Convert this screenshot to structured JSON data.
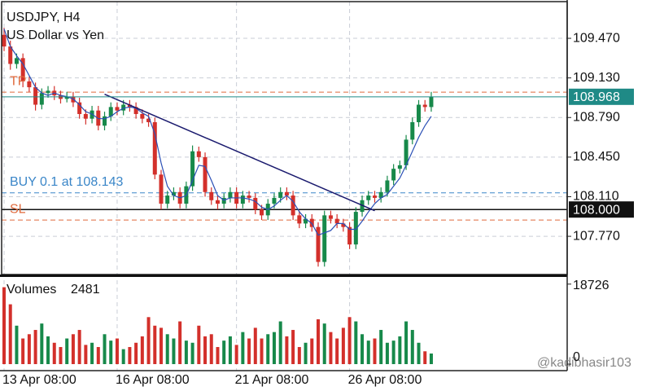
{
  "chart_data": [
    {
      "type": "candlestick",
      "title": "USDJPY, H4",
      "subtitle": "US Dollar vs Yen",
      "categories": [
        "13 Apr 08:00",
        null,
        null,
        null,
        null,
        null,
        null,
        null,
        null,
        null,
        null,
        null,
        null,
        null,
        null,
        null,
        null,
        null,
        "16 Apr 08:00",
        null,
        null,
        null,
        null,
        null,
        null,
        null,
        null,
        null,
        null,
        null,
        null,
        null,
        null,
        null,
        null,
        null,
        null,
        "21 Apr 08:00",
        null,
        null,
        null,
        null,
        null,
        null,
        null,
        null,
        null,
        null,
        null,
        null,
        null,
        null,
        null,
        null,
        null,
        "26 Apr 08:00",
        null,
        null,
        null,
        null,
        null,
        null,
        null,
        null,
        null,
        null,
        null,
        null,
        null
      ],
      "open": [
        109.5,
        109.4,
        109.25,
        109.3,
        109.1,
        109.05,
        108.9,
        109.0,
        109.02,
        108.98,
        108.95,
        108.97,
        108.92,
        108.82,
        108.78,
        108.85,
        108.72,
        108.8,
        108.88,
        108.85,
        108.9,
        108.88,
        108.82,
        108.78,
        108.75,
        108.3,
        108.05,
        108.12,
        108.15,
        108.05,
        108.2,
        108.5,
        108.45,
        108.15,
        108.08,
        108.05,
        108.1,
        108.15,
        108.05,
        108.12,
        108.1,
        108.0,
        107.95,
        108.05,
        108.1,
        108.15,
        108.12,
        107.95,
        107.88,
        107.92,
        107.85,
        107.55,
        107.95,
        107.92,
        107.88,
        107.85,
        107.7,
        107.98,
        108.08,
        108.12,
        108.1,
        108.15,
        108.25,
        108.35,
        108.38,
        108.6,
        108.75,
        108.9,
        108.88
      ],
      "high": [
        109.56,
        109.45,
        109.34,
        109.34,
        109.14,
        109.09,
        109.04,
        109.06,
        109.06,
        109.02,
        109.01,
        109.01,
        108.96,
        108.86,
        108.89,
        108.89,
        108.84,
        108.92,
        108.92,
        108.94,
        108.94,
        108.92,
        108.86,
        108.82,
        108.79,
        108.34,
        108.16,
        108.19,
        108.19,
        108.24,
        108.55,
        108.54,
        108.49,
        108.19,
        108.12,
        108.14,
        108.19,
        108.19,
        108.16,
        108.16,
        108.14,
        108.04,
        108.09,
        108.14,
        108.19,
        108.19,
        108.16,
        107.99,
        107.96,
        107.96,
        107.89,
        107.99,
        107.99,
        107.96,
        107.92,
        107.89,
        108.02,
        108.12,
        108.16,
        108.16,
        108.19,
        108.29,
        108.39,
        108.42,
        108.64,
        108.79,
        108.94,
        108.94,
        109.01
      ],
      "low": [
        109.36,
        109.2,
        109.21,
        109.05,
        109.01,
        108.85,
        108.86,
        108.96,
        108.94,
        108.91,
        108.92,
        108.88,
        108.78,
        108.73,
        108.74,
        108.68,
        108.68,
        108.76,
        108.81,
        108.81,
        108.84,
        108.78,
        108.74,
        108.71,
        108.26,
        108.0,
        108.01,
        108.08,
        108.01,
        108.01,
        108.16,
        108.41,
        108.11,
        108.04,
        108.0,
        108.01,
        108.06,
        108.01,
        108.01,
        108.06,
        107.96,
        107.91,
        107.91,
        108.01,
        108.06,
        108.08,
        107.91,
        107.84,
        107.84,
        107.81,
        107.51,
        107.51,
        107.88,
        107.84,
        107.81,
        107.66,
        107.66,
        107.94,
        108.04,
        108.06,
        108.06,
        108.11,
        108.21,
        108.31,
        108.34,
        108.56,
        108.71,
        108.84,
        108.84
      ],
      "close": [
        109.4,
        109.25,
        109.3,
        109.1,
        109.05,
        108.9,
        109.0,
        109.02,
        108.98,
        108.95,
        108.97,
        108.92,
        108.82,
        108.78,
        108.85,
        108.72,
        108.8,
        108.88,
        108.85,
        108.9,
        108.88,
        108.82,
        108.78,
        108.75,
        108.3,
        108.05,
        108.12,
        108.15,
        108.05,
        108.2,
        108.5,
        108.45,
        108.15,
        108.08,
        108.05,
        108.1,
        108.15,
        108.05,
        108.12,
        108.1,
        108.0,
        107.95,
        108.05,
        108.1,
        108.15,
        108.12,
        107.95,
        107.88,
        107.92,
        107.85,
        107.55,
        107.95,
        107.92,
        107.88,
        107.85,
        107.7,
        107.98,
        108.08,
        108.12,
        108.1,
        108.15,
        108.25,
        108.35,
        108.38,
        108.6,
        108.75,
        108.9,
        108.88,
        108.968
      ],
      "ma": [
        109.55,
        109.4,
        109.32,
        109.25,
        109.15,
        109.05,
        109.0,
        108.98,
        109.0,
        108.98,
        108.97,
        108.95,
        108.9,
        108.84,
        108.82,
        108.78,
        108.78,
        108.8,
        108.84,
        108.87,
        108.88,
        108.87,
        108.83,
        108.8,
        108.65,
        108.4,
        108.2,
        108.12,
        108.1,
        108.12,
        108.25,
        108.38,
        108.37,
        108.25,
        108.12,
        108.08,
        108.1,
        108.1,
        108.1,
        108.09,
        108.07,
        108.02,
        108.0,
        108.03,
        108.08,
        108.12,
        108.07,
        107.98,
        107.92,
        107.88,
        107.78,
        107.8,
        107.82,
        107.88,
        107.88,
        107.83,
        107.83,
        107.9,
        107.98,
        108.05,
        108.1,
        108.13,
        108.2,
        108.27,
        108.38,
        108.5,
        108.62,
        108.72,
        108.8
      ],
      "up_color": "#17894a",
      "down_color": "#d3302b",
      "ma_color": "#2a4fb5",
      "ylim": [
        107.442,
        109.785
      ],
      "yticks": [
        {
          "value": 107.77,
          "label": "107.770"
        },
        {
          "value": 108.11,
          "label": "108.110"
        },
        {
          "value": 108.45,
          "label": "108.450"
        },
        {
          "value": 108.79,
          "label": "108.790"
        },
        {
          "value": 109.13,
          "label": "109.130"
        },
        {
          "value": 109.47,
          "label": "109.470"
        }
      ],
      "grid": true,
      "trendline": {
        "x": [
          16,
          59
        ],
        "y": [
          108.99,
          107.99
        ],
        "color": "#1a1a6e"
      },
      "levels": [
        {
          "value": 109.008,
          "label": "TP",
          "color": "#e06a3c"
        },
        {
          "value": 108.143,
          "label": "BUY 0.1 at 108.143",
          "color": "#3a86c8"
        },
        {
          "value": 107.91,
          "color": "#e06a3c"
        }
      ],
      "sl": {
        "value": 108,
        "label": "108.000",
        "text": "SL",
        "color": "#e06a3c"
      },
      "price_color": "#1f8a86"
    },
    {
      "type": "bar",
      "title": "Volumes",
      "values": [
        18000,
        14000,
        9000,
        6000,
        7000,
        8000,
        9500,
        6500,
        5000,
        4000,
        6000,
        7000,
        8000,
        4500,
        5000,
        4000,
        7000,
        5500,
        6000,
        3500,
        4000,
        5000,
        6500,
        11000,
        9000,
        8500,
        7000,
        6000,
        10000,
        5500,
        5000,
        9000,
        6500,
        7000,
        4000,
        5500,
        6500,
        4500,
        7500,
        6000,
        8500,
        6000,
        7000,
        7500,
        10000,
        6500,
        8000,
        4000,
        5000,
        6000,
        10500,
        9500,
        7500,
        6000,
        8500,
        11000,
        10000,
        7000,
        5500,
        6000,
        8000,
        5000,
        5500,
        6500,
        10000,
        8000,
        5000,
        3000,
        2481
      ],
      "ylim": [
        0,
        20400
      ],
      "yticks": [
        0,
        18726
      ]
    }
  ],
  "watermark": "@kadibhasir103"
}
